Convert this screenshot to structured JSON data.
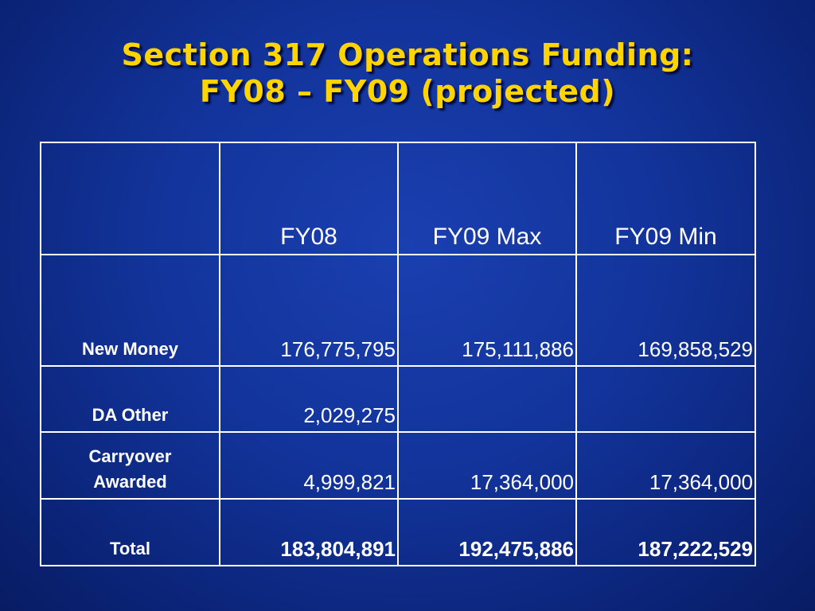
{
  "slide": {
    "title_line1": "Section 317 Operations Funding:",
    "title_line2": "FY08 – FY09 (projected)"
  },
  "table": {
    "headers": [
      "",
      "FY08",
      "FY09 Max",
      "FY09 Min"
    ],
    "rows": [
      {
        "label": "New Money",
        "values": [
          "176,775,795",
          "175,111,886",
          "169,858,529"
        ]
      },
      {
        "label": "DA Other",
        "values": [
          "2,029,275",
          "",
          ""
        ]
      },
      {
        "label_line1": "Carryover",
        "label_line2": "Awarded",
        "values": [
          "4,999,821",
          "17,364,000",
          "17,364,000"
        ]
      },
      {
        "label": "Total",
        "values": [
          "183,804,891",
          "192,475,886",
          "187,222,529"
        ]
      }
    ]
  },
  "colors": {
    "background": "#12339a",
    "title": "#ffd400",
    "text": "#ffffff",
    "grid": "#ffffff"
  }
}
